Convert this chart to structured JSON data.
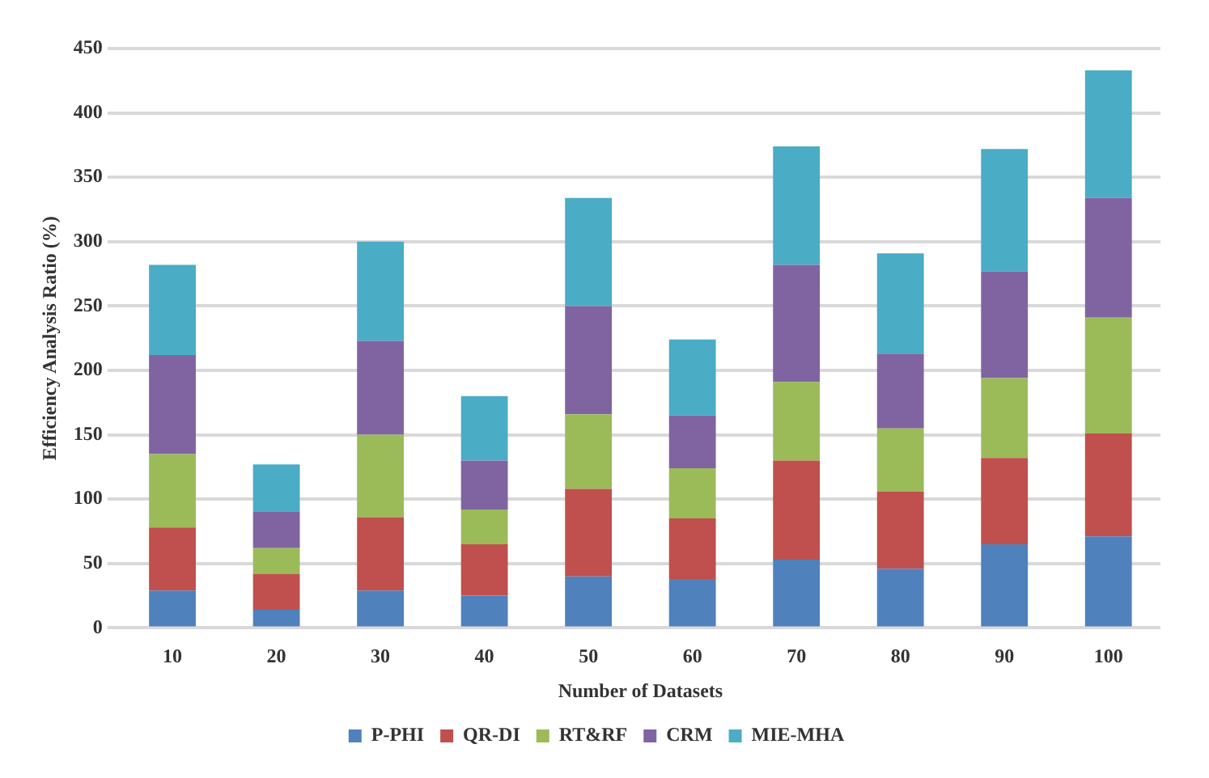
{
  "chart_data": {
    "type": "bar",
    "stacked": true,
    "xlabel": "Number of Datasets",
    "ylabel": "Efficiency Analysis Ratio (%)",
    "categories": [
      "10",
      "20",
      "30",
      "40",
      "50",
      "60",
      "70",
      "80",
      "90",
      "100"
    ],
    "series": [
      {
        "name": "P-PHI",
        "color": "#4f81bd",
        "values": [
          29,
          14,
          29,
          25,
          40,
          38,
          53,
          46,
          65,
          71
        ]
      },
      {
        "name": "QR-DI",
        "color": "#c0504d",
        "values": [
          49,
          28,
          57,
          40,
          68,
          47,
          77,
          60,
          67,
          80
        ]
      },
      {
        "name": "RT&RF",
        "color": "#9bbb59",
        "values": [
          57,
          20,
          64,
          27,
          58,
          39,
          61,
          49,
          62,
          90
        ]
      },
      {
        "name": "CRM",
        "color": "#8064a2",
        "values": [
          77,
          28,
          73,
          38,
          84,
          41,
          91,
          58,
          83,
          93
        ]
      },
      {
        "name": "MIE-MHA",
        "color": "#4bacc6",
        "values": [
          70,
          37,
          77,
          50,
          84,
          59,
          92,
          78,
          95,
          99
        ]
      }
    ],
    "ylim": [
      0,
      450
    ],
    "yticks": [
      0,
      50,
      100,
      150,
      200,
      250,
      300,
      350,
      400,
      450
    ],
    "grid": "y",
    "legend": "bottom"
  }
}
